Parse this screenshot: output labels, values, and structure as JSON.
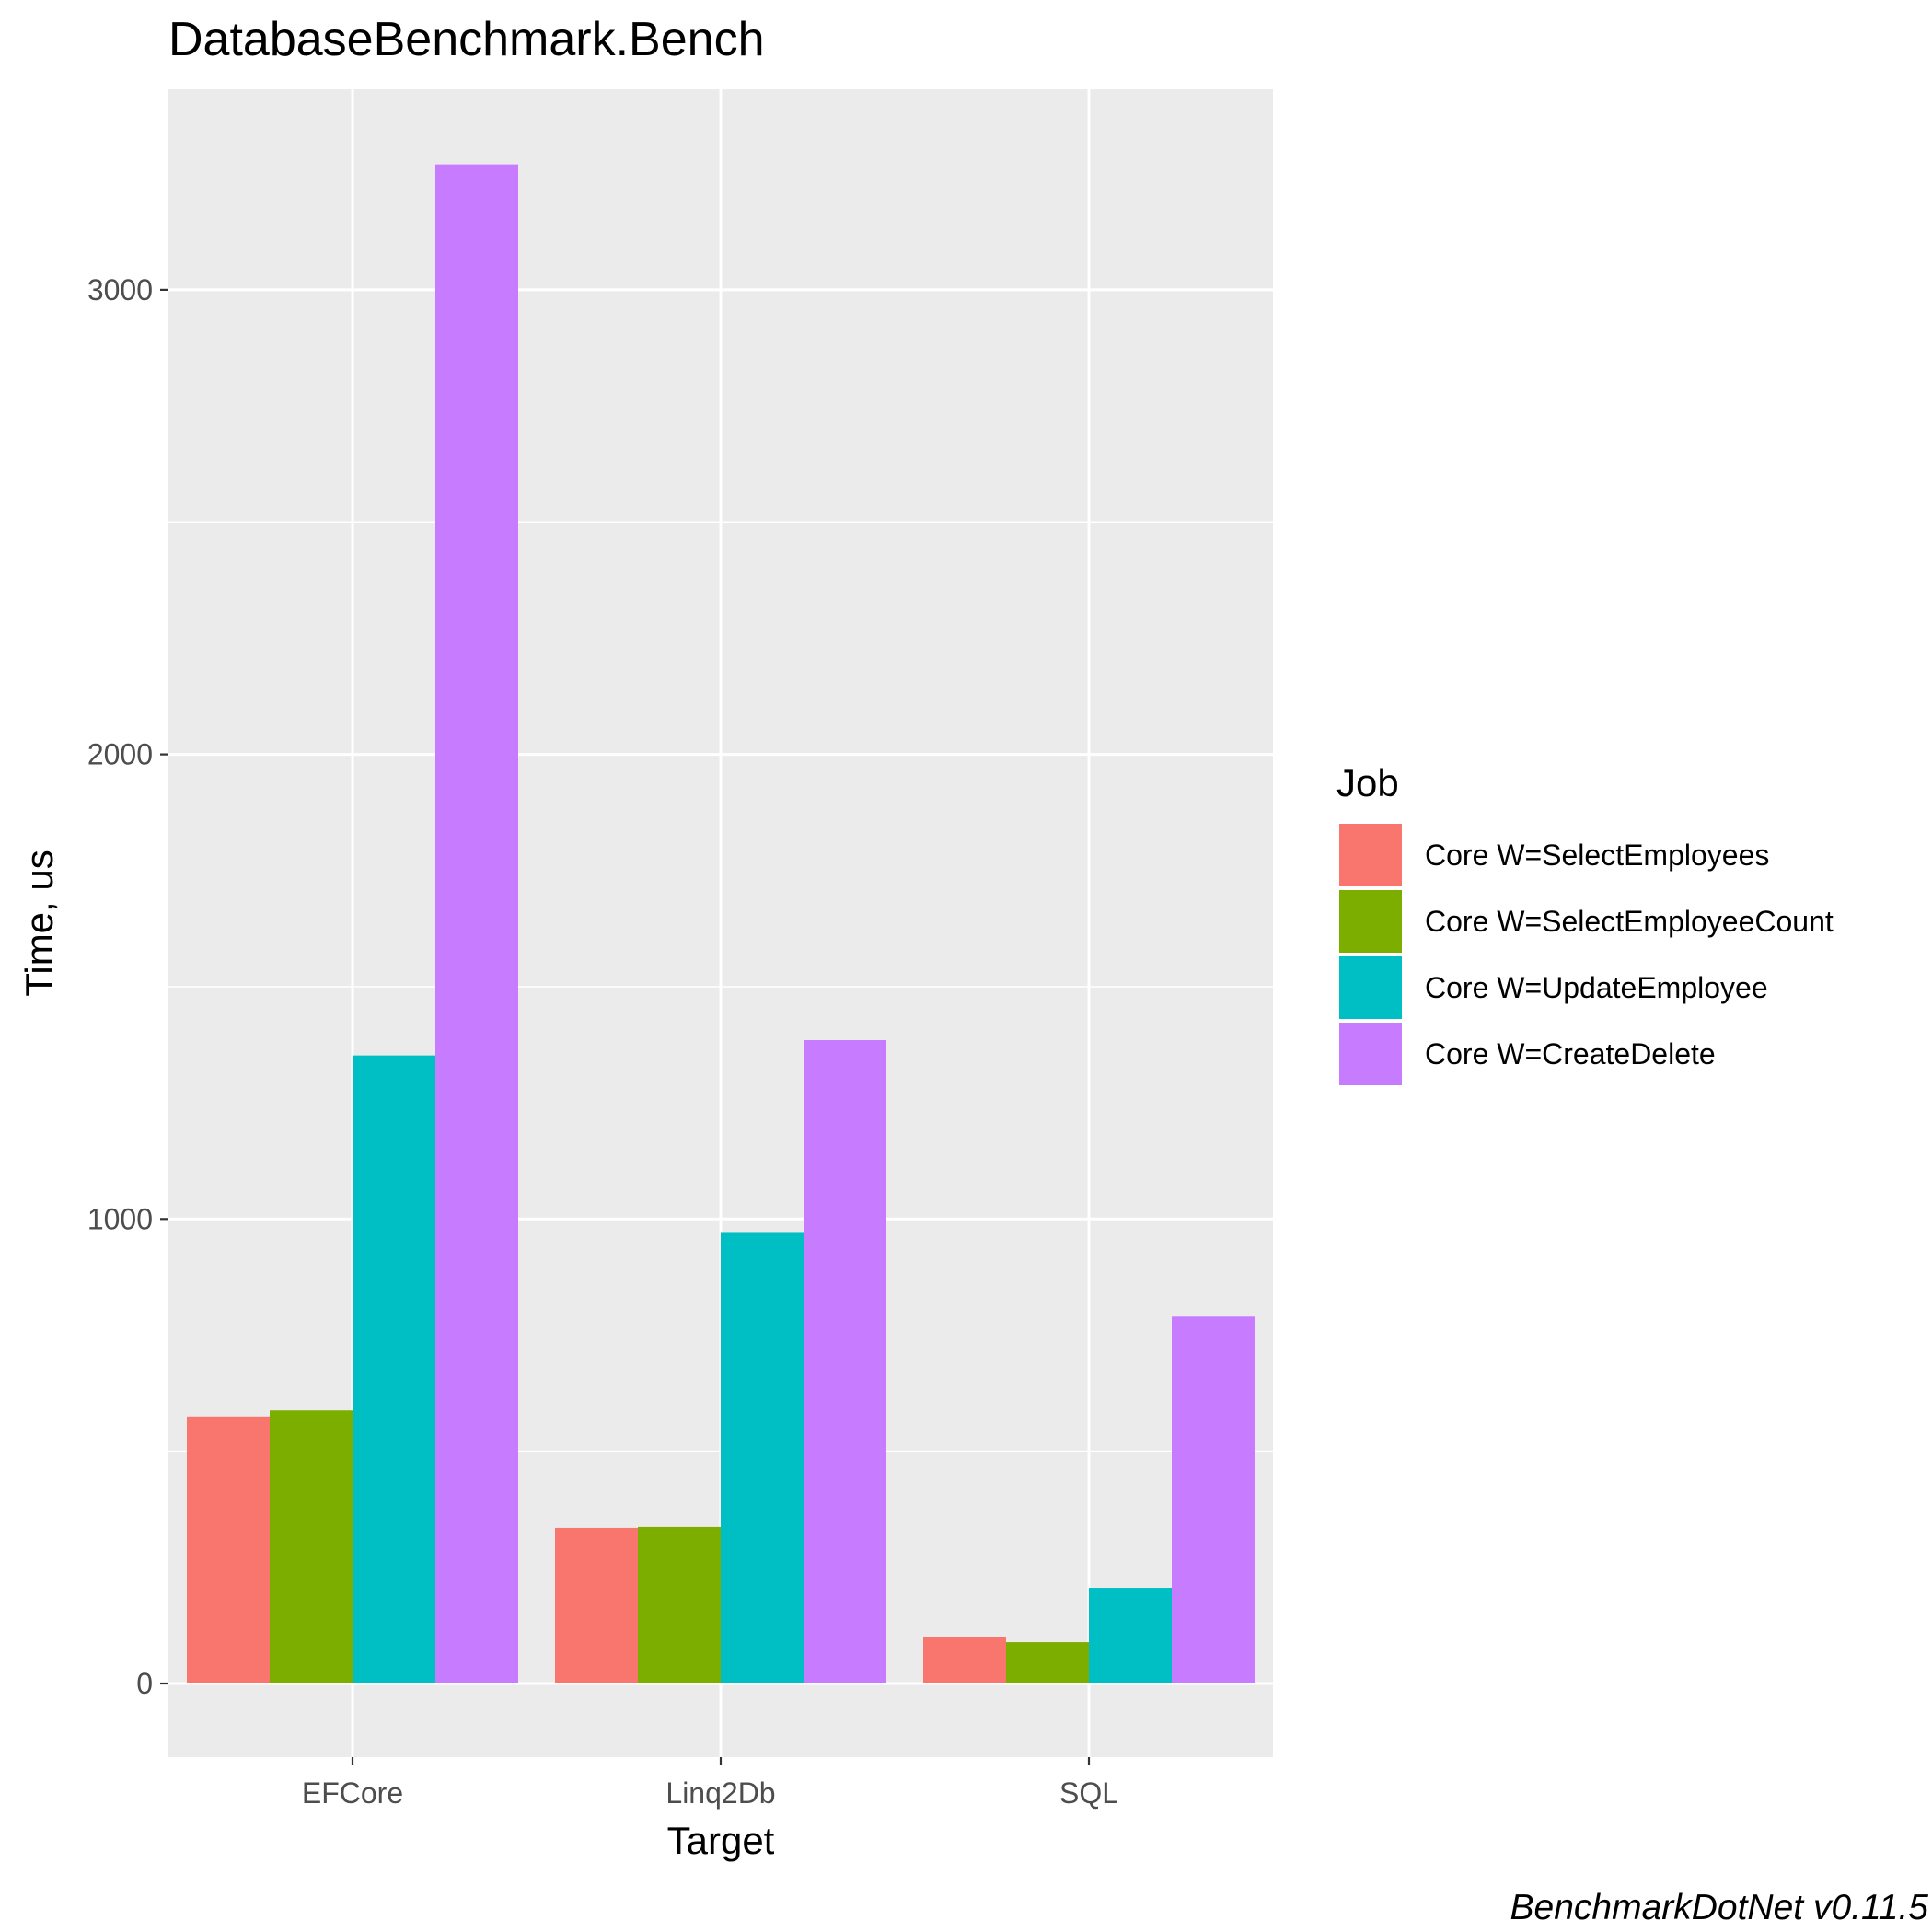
{
  "chart_data": {
    "type": "bar",
    "title": "DatabaseBenchmark.Bench",
    "xlabel": "Target",
    "ylabel": "Time, us",
    "caption": "BenchmarkDotNet v0.11.5",
    "categories": [
      "EFCore",
      "Linq2Db",
      "SQL"
    ],
    "ylim": [
      -160,
      3420
    ],
    "yticks": [
      0,
      1000,
      2000,
      3000
    ],
    "y_minor_gridlines": [
      500,
      1500,
      2500
    ],
    "grid": true,
    "legend": {
      "title": "Job",
      "position": "right"
    },
    "series": [
      {
        "name": "Core W=SelectEmployees",
        "color": "#F8766D",
        "values": [
          575,
          335,
          100
        ]
      },
      {
        "name": "Core W=SelectEmployeeCount",
        "color": "#7CAE00",
        "values": [
          588,
          337,
          89
        ]
      },
      {
        "name": "Core W=UpdateEmployee",
        "color": "#00BFC4",
        "values": [
          1352,
          970,
          206
        ]
      },
      {
        "name": "Core W=CreateDelete",
        "color": "#C77CFF",
        "values": [
          3270,
          1385,
          790
        ]
      }
    ]
  }
}
